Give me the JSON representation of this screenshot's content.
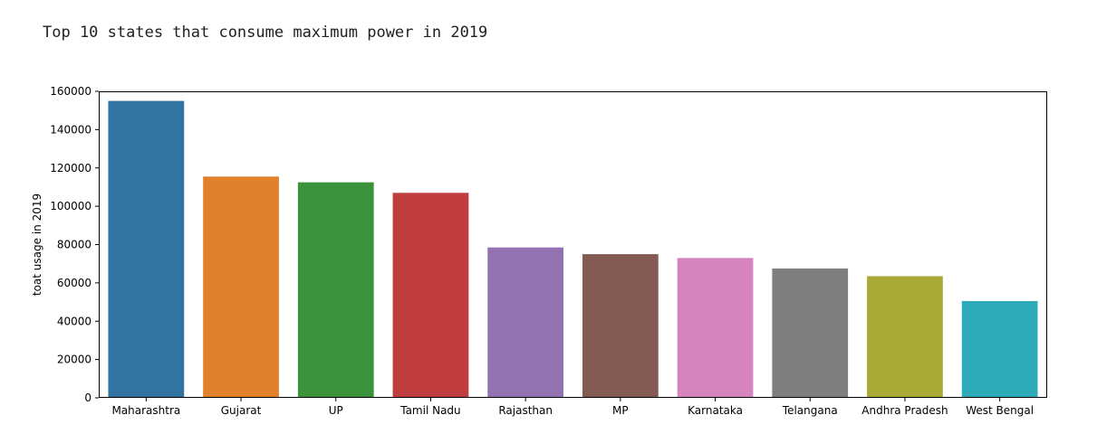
{
  "output_text": "Top 10 states that consume maximum power in 2019",
  "chart_data": {
    "type": "bar",
    "title": "",
    "xlabel": "",
    "ylabel": "toat usage in 2019",
    "ylim": [
      0,
      160000
    ],
    "yticks": [
      0,
      20000,
      40000,
      60000,
      80000,
      100000,
      120000,
      140000,
      160000
    ],
    "grid": false,
    "categories": [
      "Maharashtra",
      "Gujarat",
      "UP",
      "Tamil Nadu",
      "Rajasthan",
      "MP",
      "Karnataka",
      "Telangana",
      "Andhra Pradesh",
      "West Bengal"
    ],
    "values": [
      155000,
      115500,
      112500,
      107000,
      78500,
      75000,
      73000,
      67500,
      63500,
      50500
    ],
    "colors": [
      "#3274a1",
      "#e1812c",
      "#3a923a",
      "#c03d3e",
      "#9372b2",
      "#845b53",
      "#d684bd",
      "#7f7f7f",
      "#a9aa35",
      "#2eabb8"
    ]
  }
}
